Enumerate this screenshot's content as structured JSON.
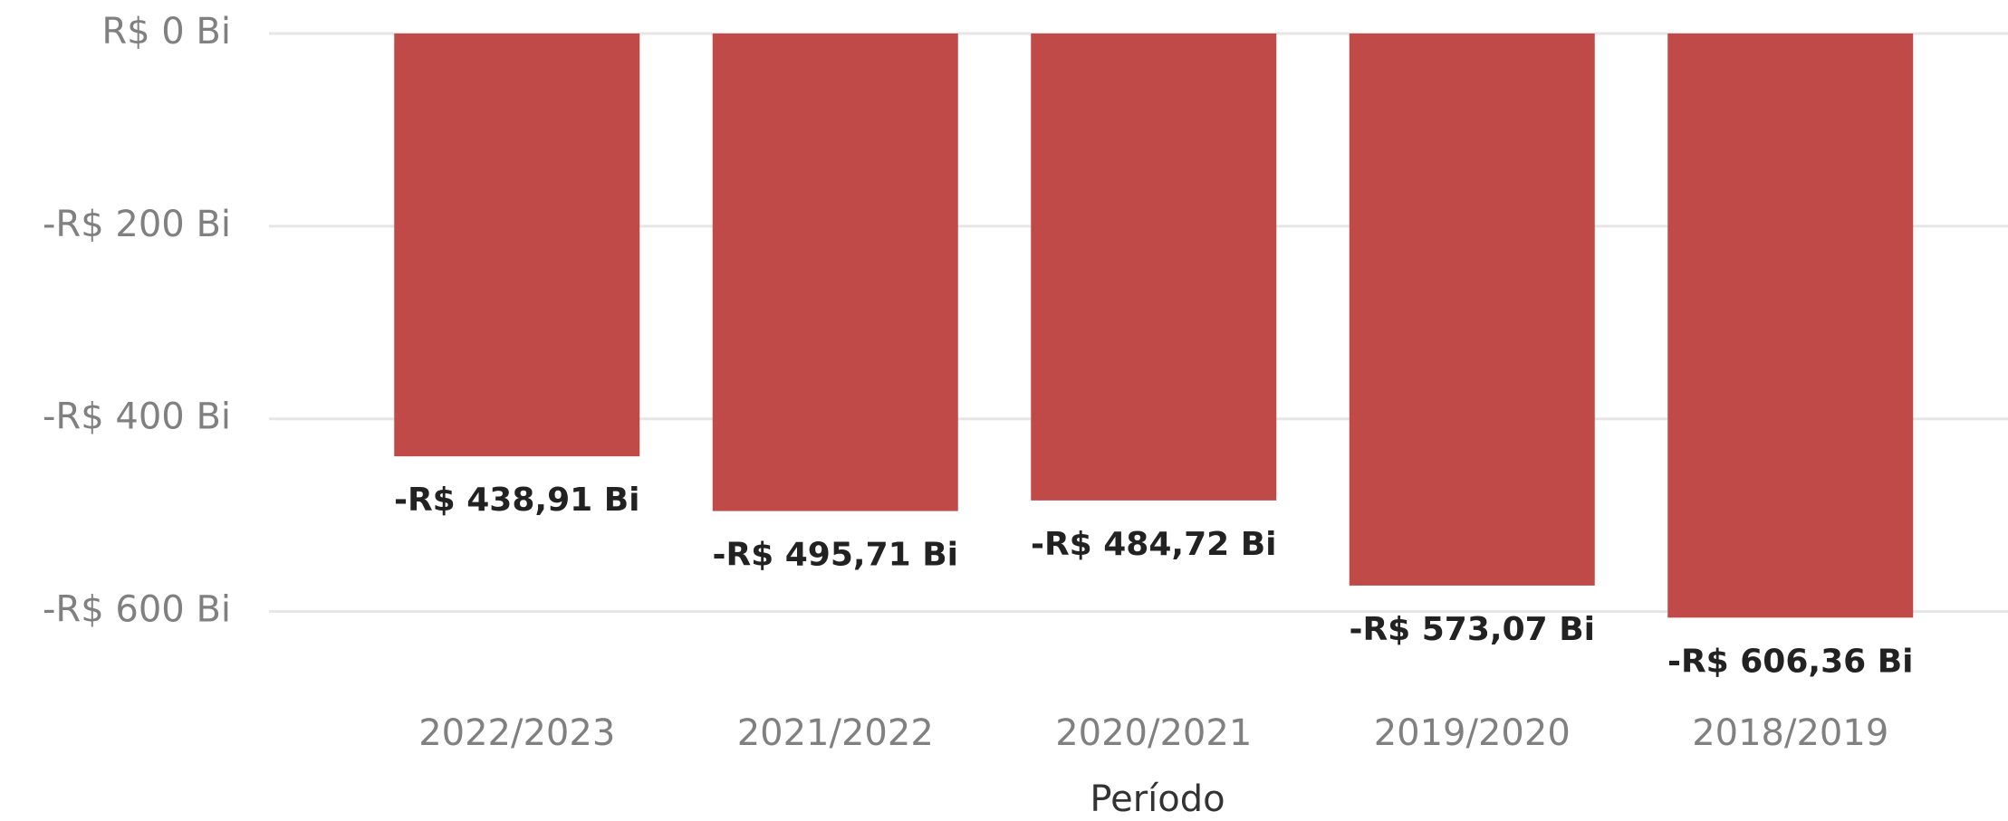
{
  "chart_data": {
    "type": "bar",
    "x_label": "Período",
    "categories": [
      "2022/2023",
      "2021/2022",
      "2020/2021",
      "2019/2020",
      "2018/2019"
    ],
    "values": [
      -438.91,
      -495.71,
      -484.72,
      -573.07,
      -606.36
    ],
    "value_labels": [
      "-R$ 438,91 Bi",
      "-R$ 495,71 Bi",
      "-R$ 484,72 Bi",
      "-R$ 573,07 Bi",
      "-R$ 606,36 Bi"
    ],
    "color": "#c04a48",
    "ylim": [
      -700,
      0
    ],
    "yticks": [
      {
        "value": 0,
        "label": "R$ 0 Bi"
      },
      {
        "value": -200,
        "label": "-R$ 200 Bi"
      },
      {
        "value": -400,
        "label": "-R$ 400 Bi"
      },
      {
        "value": -600,
        "label": "-R$ 600 Bi"
      }
    ],
    "grid": true
  }
}
